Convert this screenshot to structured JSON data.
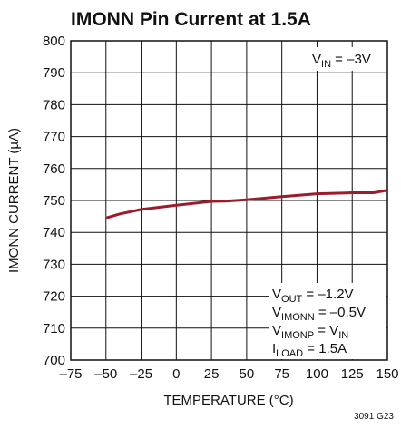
{
  "chart_data": {
    "type": "line",
    "title": "IMONN Pin Current at 1.5A",
    "x_label": "TEMPERATURE (°C)",
    "y_label": "IMONN CURRENT (µA)",
    "footnote": "3091 G23",
    "x": [
      -50,
      -40,
      -25,
      0,
      25,
      35,
      50,
      75,
      100,
      125,
      140,
      150
    ],
    "series": [
      {
        "name": "IMONN",
        "color": "#9b1c2c",
        "values": [
          744.5,
          745.8,
          747.2,
          748.5,
          749.7,
          749.8,
          750.2,
          751.2,
          752.1,
          752.4,
          752.4,
          753.2
        ]
      }
    ],
    "xlim": [
      -75,
      150
    ],
    "xticks": [
      {
        "value": -75,
        "label": "–75"
      },
      {
        "value": -50,
        "label": "–50"
      },
      {
        "value": -25,
        "label": "–25"
      },
      0,
      25,
      50,
      75,
      100,
      125,
      150
    ],
    "ylim": [
      700,
      800
    ],
    "yticks": [
      700,
      710,
      720,
      730,
      740,
      750,
      760,
      770,
      780,
      790,
      800
    ],
    "grid": true,
    "annotations_top": [
      [
        "V",
        "IN",
        " = –3V"
      ]
    ],
    "annotations_bottom": [
      [
        "V",
        "OUT",
        " = –1.2V"
      ],
      [
        "V",
        "IMONN",
        " = –0.5V"
      ],
      [
        "V",
        "IMONP",
        " = V",
        "IN"
      ],
      [
        "I",
        "LOAD",
        " = 1.5A"
      ]
    ]
  }
}
